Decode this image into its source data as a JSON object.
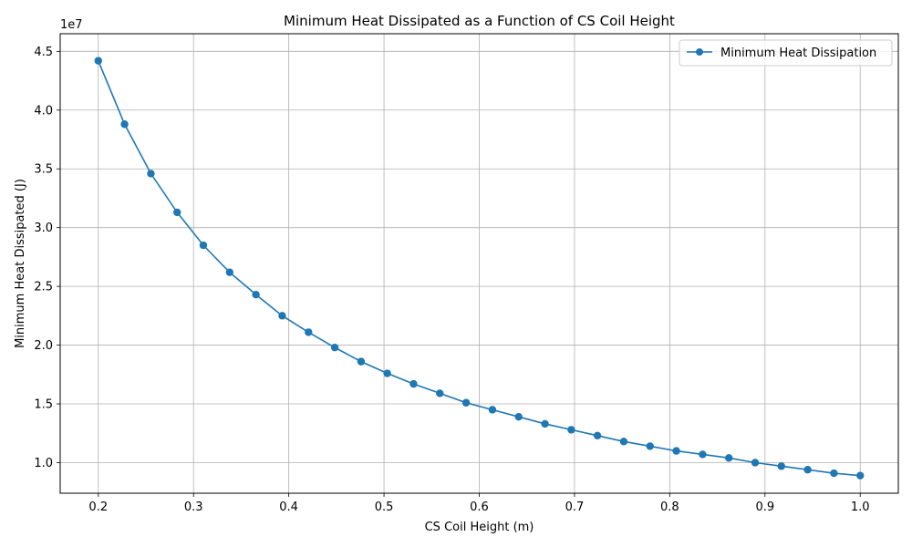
{
  "chart_data": {
    "type": "line",
    "title": "Minimum Heat Dissipated as a Function of CS Coil Height",
    "xlabel": "CS Coil Height (m)",
    "ylabel": "Minimum Heat Dissipated (J)",
    "y_scale_label": "1e7",
    "xlim": [
      0.16,
      1.04
    ],
    "ylim": [
      0.74,
      4.65
    ],
    "y_units_multiplier": 10000000,
    "x_ticks": [
      0.2,
      0.3,
      0.4,
      0.5,
      0.6,
      0.7,
      0.8,
      0.9,
      1.0
    ],
    "x_tick_labels": [
      "0.2",
      "0.3",
      "0.4",
      "0.5",
      "0.6",
      "0.7",
      "0.8",
      "0.9",
      "1.0"
    ],
    "y_ticks": [
      1.0,
      1.5,
      2.0,
      2.5,
      3.0,
      3.5,
      4.0,
      4.5
    ],
    "y_tick_labels": [
      "1.0",
      "1.5",
      "2.0",
      "2.5",
      "3.0",
      "3.5",
      "4.0",
      "4.5"
    ],
    "grid": true,
    "legend_position": "top-right",
    "color": "#1f77b4",
    "series": [
      {
        "name": "Minimum Heat Dissipation",
        "x": [
          0.2,
          0.2276,
          0.2552,
          0.2828,
          0.3103,
          0.3379,
          0.3655,
          0.3931,
          0.4207,
          0.4483,
          0.4759,
          0.5034,
          0.531,
          0.5586,
          0.5862,
          0.6138,
          0.6414,
          0.669,
          0.6966,
          0.7241,
          0.7517,
          0.7793,
          0.8069,
          0.8345,
          0.8621,
          0.8897,
          0.9172,
          0.9448,
          0.9724,
          1.0
        ],
        "y": [
          4.42,
          3.88,
          3.46,
          3.13,
          2.85,
          2.62,
          2.43,
          2.25,
          2.11,
          1.98,
          1.86,
          1.76,
          1.67,
          1.59,
          1.51,
          1.45,
          1.39,
          1.33,
          1.28,
          1.23,
          1.18,
          1.14,
          1.1,
          1.07,
          1.04,
          1.0,
          0.97,
          0.94,
          0.91,
          0.89
        ]
      }
    ]
  }
}
